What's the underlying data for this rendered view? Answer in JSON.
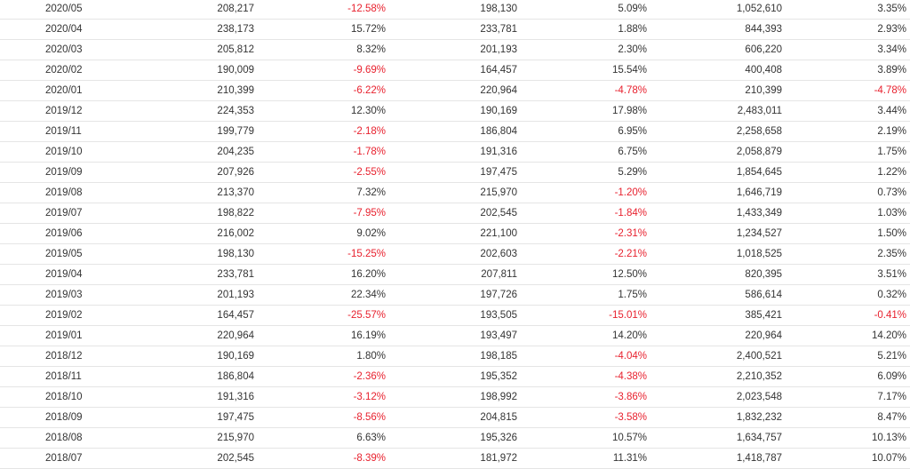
{
  "colors": {
    "negative": "#e8212e",
    "text": "#333333",
    "rule": "#e5e5e5"
  },
  "table": {
    "rows": [
      [
        "2020/05",
        "208,217",
        "-12.58%",
        "198,130",
        "5.09%",
        "1,052,610",
        "3.35%"
      ],
      [
        "2020/04",
        "238,173",
        "15.72%",
        "233,781",
        "1.88%",
        "844,393",
        "2.93%"
      ],
      [
        "2020/03",
        "205,812",
        "8.32%",
        "201,193",
        "2.30%",
        "606,220",
        "3.34%"
      ],
      [
        "2020/02",
        "190,009",
        "-9.69%",
        "164,457",
        "15.54%",
        "400,408",
        "3.89%"
      ],
      [
        "2020/01",
        "210,399",
        "-6.22%",
        "220,964",
        "-4.78%",
        "210,399",
        "-4.78%"
      ],
      [
        "2019/12",
        "224,353",
        "12.30%",
        "190,169",
        "17.98%",
        "2,483,011",
        "3.44%"
      ],
      [
        "2019/11",
        "199,779",
        "-2.18%",
        "186,804",
        "6.95%",
        "2,258,658",
        "2.19%"
      ],
      [
        "2019/10",
        "204,235",
        "-1.78%",
        "191,316",
        "6.75%",
        "2,058,879",
        "1.75%"
      ],
      [
        "2019/09",
        "207,926",
        "-2.55%",
        "197,475",
        "5.29%",
        "1,854,645",
        "1.22%"
      ],
      [
        "2019/08",
        "213,370",
        "7.32%",
        "215,970",
        "-1.20%",
        "1,646,719",
        "0.73%"
      ],
      [
        "2019/07",
        "198,822",
        "-7.95%",
        "202,545",
        "-1.84%",
        "1,433,349",
        "1.03%"
      ],
      [
        "2019/06",
        "216,002",
        "9.02%",
        "221,100",
        "-2.31%",
        "1,234,527",
        "1.50%"
      ],
      [
        "2019/05",
        "198,130",
        "-15.25%",
        "202,603",
        "-2.21%",
        "1,018,525",
        "2.35%"
      ],
      [
        "2019/04",
        "233,781",
        "16.20%",
        "207,811",
        "12.50%",
        "820,395",
        "3.51%"
      ],
      [
        "2019/03",
        "201,193",
        "22.34%",
        "197,726",
        "1.75%",
        "586,614",
        "0.32%"
      ],
      [
        "2019/02",
        "164,457",
        "-25.57%",
        "193,505",
        "-15.01%",
        "385,421",
        "-0.41%"
      ],
      [
        "2019/01",
        "220,964",
        "16.19%",
        "193,497",
        "14.20%",
        "220,964",
        "14.20%"
      ],
      [
        "2018/12",
        "190,169",
        "1.80%",
        "198,185",
        "-4.04%",
        "2,400,521",
        "5.21%"
      ],
      [
        "2018/11",
        "186,804",
        "-2.36%",
        "195,352",
        "-4.38%",
        "2,210,352",
        "6.09%"
      ],
      [
        "2018/10",
        "191,316",
        "-3.12%",
        "198,992",
        "-3.86%",
        "2,023,548",
        "7.17%"
      ],
      [
        "2018/09",
        "197,475",
        "-8.56%",
        "204,815",
        "-3.58%",
        "1,832,232",
        "8.47%"
      ],
      [
        "2018/08",
        "215,970",
        "6.63%",
        "195,326",
        "10.57%",
        "1,634,757",
        "10.13%"
      ],
      [
        "2018/07",
        "202,545",
        "-8.39%",
        "181,972",
        "11.31%",
        "1,418,787",
        "10.07%"
      ]
    ]
  }
}
